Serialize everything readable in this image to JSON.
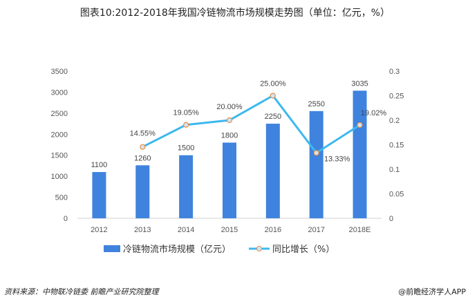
{
  "chart_data": {
    "type": "bar+line",
    "title": "图表10:2012-2018年我国冷链物流市场规模走势图（单位：亿元，%）",
    "categories": [
      "2012",
      "2013",
      "2014",
      "2015",
      "2016",
      "2017",
      "2018E"
    ],
    "series": [
      {
        "name": "冷链物流市场规模（亿元）",
        "type": "bar",
        "axis": "left",
        "color": "#3f83de",
        "values": [
          1100,
          1260,
          1500,
          1800,
          2250,
          2550,
          3035
        ],
        "labels": [
          "1100",
          "1260",
          "1500",
          "1800",
          "2250",
          "2550",
          "3035"
        ]
      },
      {
        "name": "同比增长（%）",
        "type": "line",
        "axis": "right",
        "color": "#3db8ef",
        "marker_color": "#ef8c3a",
        "values": [
          null,
          0.1455,
          0.1905,
          0.2,
          0.25,
          0.1333,
          0.1902
        ],
        "labels": [
          null,
          "14.55%",
          "19.05%",
          "20.00%",
          "25.00%",
          "13.33%",
          "19.02%"
        ]
      }
    ],
    "ylim": [
      0,
      3500
    ],
    "yticks": [
      "0",
      "500",
      "1000",
      "1500",
      "2000",
      "2500",
      "3000",
      "3500"
    ],
    "y2lim": [
      0,
      0.3
    ],
    "y2ticks": [
      "0",
      "0.05",
      "0.1",
      "0.15",
      "0.2",
      "0.25",
      "0.3"
    ],
    "grid": false,
    "legend": "bottom"
  },
  "footer": {
    "source": "资料来源：中物联冷链委 前瞻产业研究院整理",
    "credit": "@前瞻经济学人APP"
  }
}
